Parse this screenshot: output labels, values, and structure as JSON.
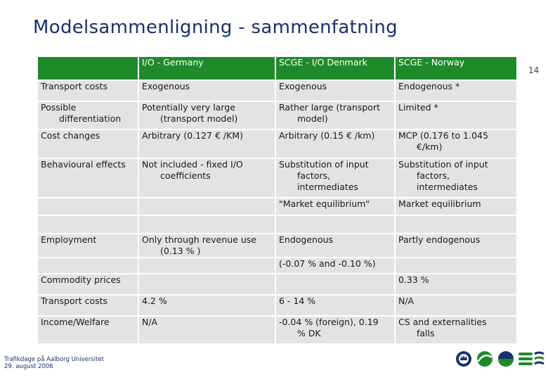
{
  "title": "Modelsammenligning - sammenfatning",
  "page_number": "14",
  "header": [
    "",
    "I/O - Germany",
    "SCGE - I/O Denmark",
    "SCGE - Norway"
  ],
  "rows": [
    {
      "cells": [
        [
          "Transport costs"
        ],
        [
          "Exogenous"
        ],
        [
          "Exogenous"
        ],
        [
          "Endogenous *"
        ]
      ]
    },
    {
      "cells": [
        [
          "Possible",
          "differentiation"
        ],
        [
          "Potentially very large",
          "(transport model)"
        ],
        [
          "Rather large (transport",
          "model)"
        ],
        [
          "Limited *"
        ]
      ]
    },
    {
      "cells": [
        [
          "Cost changes"
        ],
        [
          "Arbitrary (0.127 € /KM)"
        ],
        [
          "Arbitrary (0.15 € /km)"
        ],
        [
          "MCP (0.176 to 1.045",
          "€/km)"
        ]
      ]
    },
    {
      "cells": [
        [
          "Behavioural effects"
        ],
        [
          "Not included - fixed I/O",
          "coefficients"
        ],
        [
          "Substitution of input",
          "factors,",
          "intermediates"
        ],
        [
          "Substitution of input",
          "factors,",
          "intermediates"
        ]
      ]
    },
    {
      "cells": [
        [
          ""
        ],
        [
          ""
        ],
        [
          "\"Market equilibrium\""
        ],
        [
          "Market equilibrium"
        ]
      ]
    },
    {
      "cells": [
        [
          ""
        ],
        [
          ""
        ],
        [
          ""
        ],
        [
          ""
        ]
      ]
    },
    {
      "cells": [
        [
          "Employment"
        ],
        [
          "Only through revenue use",
          "(0.13 % )"
        ],
        [
          "Endogenous"
        ],
        [
          "Partly endogenous"
        ]
      ]
    },
    {
      "cells": [
        [
          ""
        ],
        [
          ""
        ],
        [
          "(-0.07 % and -0.10 %)"
        ],
        [
          ""
        ]
      ]
    },
    {
      "cells": [
        [
          "Commodity prices"
        ],
        [
          ""
        ],
        [
          ""
        ],
        [
          "0.33 %"
        ]
      ]
    },
    {
      "cells": [
        [
          "Transport costs"
        ],
        [
          "4.2 %"
        ],
        [
          "6 - 14 %"
        ],
        [
          "N/A"
        ]
      ]
    },
    {
      "cells": [
        [
          "Income/Welfare"
        ],
        [
          "N/A"
        ],
        [
          "-0.04 % (foreign), 0.19",
          "% DK"
        ],
        [
          "CS and externalities",
          "falls"
        ]
      ]
    }
  ],
  "footer": {
    "line1": "Trafikdage på Aalborg Universitet",
    "line2": "29. august 2006"
  },
  "logos": [
    "crown-seal-icon",
    "green-swoosh-icon",
    "blue-green-ball-icon",
    "green-stripes-icon",
    "wave-stripes-icon"
  ]
}
